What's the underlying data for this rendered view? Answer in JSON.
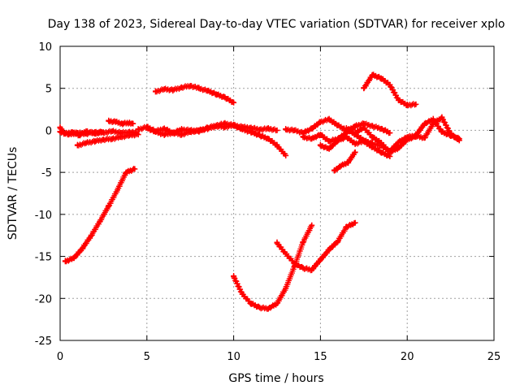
{
  "chart_data": {
    "type": "scatter",
    "title": "Day 138 of 2023, Sidereal Day-to-day VTEC variation (SDTVAR) for receiver xplo",
    "xlabel": "GPS time / hours",
    "ylabel": "SDTVAR / TECUs",
    "xlim": [
      0,
      25
    ],
    "ylim": [
      -25,
      10
    ],
    "xticks": [
      "0",
      "5",
      "10",
      "15",
      "20",
      "25"
    ],
    "yticks": [
      "10",
      "5",
      "0",
      "-5",
      "-10",
      "-15",
      "-20",
      "-25"
    ],
    "grid": true,
    "marker_color": "#ff0000",
    "series": [
      {
        "name": "s1",
        "x": [
          0.0,
          0.5,
          1.0,
          1.5,
          2.0,
          2.5,
          3.0,
          3.5,
          4.0,
          4.4
        ],
        "y": [
          -0.2,
          -0.5,
          -0.3,
          -0.4,
          -0.2,
          -0.3,
          -0.1,
          -0.3,
          -0.2,
          -0.3
        ]
      },
      {
        "name": "s2",
        "x": [
          0.0,
          0.3,
          0.7,
          1.1,
          1.5,
          2.0,
          2.4
        ],
        "y": [
          0.3,
          -0.4,
          -0.2,
          -0.6,
          -0.1,
          -0.4,
          -0.2
        ]
      },
      {
        "name": "s3",
        "x": [
          1.0,
          1.5,
          2.0,
          2.5,
          3.0,
          3.5,
          4.0,
          4.5
        ],
        "y": [
          -1.8,
          -1.5,
          -1.3,
          -1.1,
          -1.0,
          -0.8,
          -0.6,
          -0.5
        ]
      },
      {
        "name": "s4",
        "x": [
          2.8,
          3.2,
          3.6,
          4.0,
          4.2
        ],
        "y": [
          1.1,
          1.0,
          0.8,
          0.9,
          0.8
        ]
      },
      {
        "name": "s5",
        "x": [
          4.5,
          5.0,
          5.5,
          6.0,
          6.5,
          7.0,
          7.5,
          8.0,
          8.5,
          9.0,
          9.5,
          10.0,
          10.5,
          11.0,
          11.5,
          12.0,
          12.5
        ],
        "y": [
          0.1,
          0.4,
          -0.1,
          0.2,
          -0.3,
          0.1,
          0.0,
          -0.1,
          0.3,
          0.6,
          0.8,
          0.6,
          0.4,
          0.3,
          0.1,
          0.2,
          0.0
        ]
      },
      {
        "name": "s6",
        "x": [
          5.0,
          5.5,
          6.0,
          6.5,
          7.0,
          7.5,
          8.0,
          8.5,
          9.0,
          9.5,
          10.0,
          10.5,
          11.0,
          11.5,
          12.0,
          12.5,
          13.0
        ],
        "y": [
          0.3,
          -0.2,
          -0.5,
          -0.3,
          -0.5,
          -0.2,
          0.0,
          0.2,
          0.5,
          0.4,
          0.6,
          0.1,
          -0.2,
          -0.6,
          -1.0,
          -1.8,
          -3.0
        ]
      },
      {
        "name": "s7",
        "x": [
          5.5,
          6.0,
          6.5,
          7.0,
          7.5,
          8.0,
          8.5,
          9.0,
          9.5,
          10.0
        ],
        "y": [
          4.6,
          4.9,
          4.8,
          5.1,
          5.3,
          5.0,
          4.7,
          4.3,
          3.9,
          3.3
        ]
      },
      {
        "name": "s8",
        "x": [
          0.3,
          0.8,
          1.3,
          1.8,
          2.3,
          2.8,
          3.3,
          3.8,
          4.3
        ],
        "y": [
          -15.6,
          -15.2,
          -14.0,
          -12.5,
          -10.8,
          -9.0,
          -7.1,
          -5.0,
          -4.6
        ]
      },
      {
        "name": "s9",
        "x": [
          10.0,
          10.5,
          11.0,
          11.5,
          12.0,
          12.5,
          13.0,
          13.5,
          14.0,
          14.5
        ],
        "y": [
          -17.4,
          -19.5,
          -20.6,
          -21.1,
          -21.2,
          -20.6,
          -18.8,
          -16.2,
          -13.3,
          -11.3
        ]
      },
      {
        "name": "s10",
        "x": [
          12.5,
          13.0,
          13.5,
          14.0,
          14.5,
          15.0,
          15.5,
          16.0,
          16.5,
          17.0
        ],
        "y": [
          -13.4,
          -14.7,
          -15.8,
          -16.4,
          -16.6,
          -15.4,
          -14.2,
          -13.2,
          -11.5,
          -11.0
        ]
      },
      {
        "name": "s11",
        "x": [
          13.0,
          13.5,
          14.0,
          14.5,
          15.0,
          15.5,
          16.0,
          16.5,
          17.0
        ],
        "y": [
          0.1,
          0.0,
          -0.3,
          0.2,
          1.0,
          1.3,
          0.6,
          0.0,
          0.4
        ]
      },
      {
        "name": "s12",
        "x": [
          14.0,
          14.5,
          15.0,
          15.5,
          16.0,
          16.5,
          17.0,
          17.5,
          18.0,
          18.5,
          19.0
        ],
        "y": [
          -0.8,
          -1.0,
          -0.5,
          -1.3,
          -1.0,
          -0.3,
          0.5,
          0.8,
          0.5,
          0.2,
          -0.3
        ]
      },
      {
        "name": "s13",
        "x": [
          15.0,
          15.5,
          16.0,
          16.5,
          17.0,
          17.5,
          18.0,
          18.5,
          19.0
        ],
        "y": [
          -1.8,
          -2.2,
          -1.2,
          -0.8,
          -1.6,
          -1.3,
          -2.0,
          -2.6,
          -3.1
        ]
      },
      {
        "name": "s14",
        "x": [
          15.8,
          16.2,
          16.6,
          17.0
        ],
        "y": [
          -4.8,
          -4.2,
          -3.8,
          -2.6
        ]
      },
      {
        "name": "s15",
        "x": [
          16.5,
          17.0,
          17.5,
          18.0,
          18.5,
          19.0,
          19.5,
          20.0,
          20.5,
          21.0,
          21.5,
          22.0,
          22.5,
          23.0
        ],
        "y": [
          0.2,
          -0.5,
          -1.2,
          -1.6,
          -1.8,
          -2.5,
          -1.4,
          -0.8,
          -0.6,
          0.8,
          1.3,
          -0.2,
          -0.6,
          -1.0
        ]
      },
      {
        "name": "s16",
        "x": [
          17.0,
          17.5,
          18.0,
          18.5,
          19.0,
          19.5,
          20.0,
          20.5,
          21.0,
          21.5,
          22.0,
          22.5,
          23.0
        ],
        "y": [
          -0.3,
          0.3,
          -0.8,
          -1.5,
          -2.6,
          -2.1,
          -1.1,
          -0.7,
          -0.9,
          0.8,
          1.5,
          -0.4,
          -1.2
        ]
      },
      {
        "name": "s17",
        "x": [
          17.5,
          18.0,
          18.5,
          19.0,
          19.5,
          20.0,
          20.5
        ],
        "y": [
          5.0,
          6.6,
          6.2,
          5.4,
          3.6,
          3.0,
          3.1
        ]
      }
    ]
  }
}
